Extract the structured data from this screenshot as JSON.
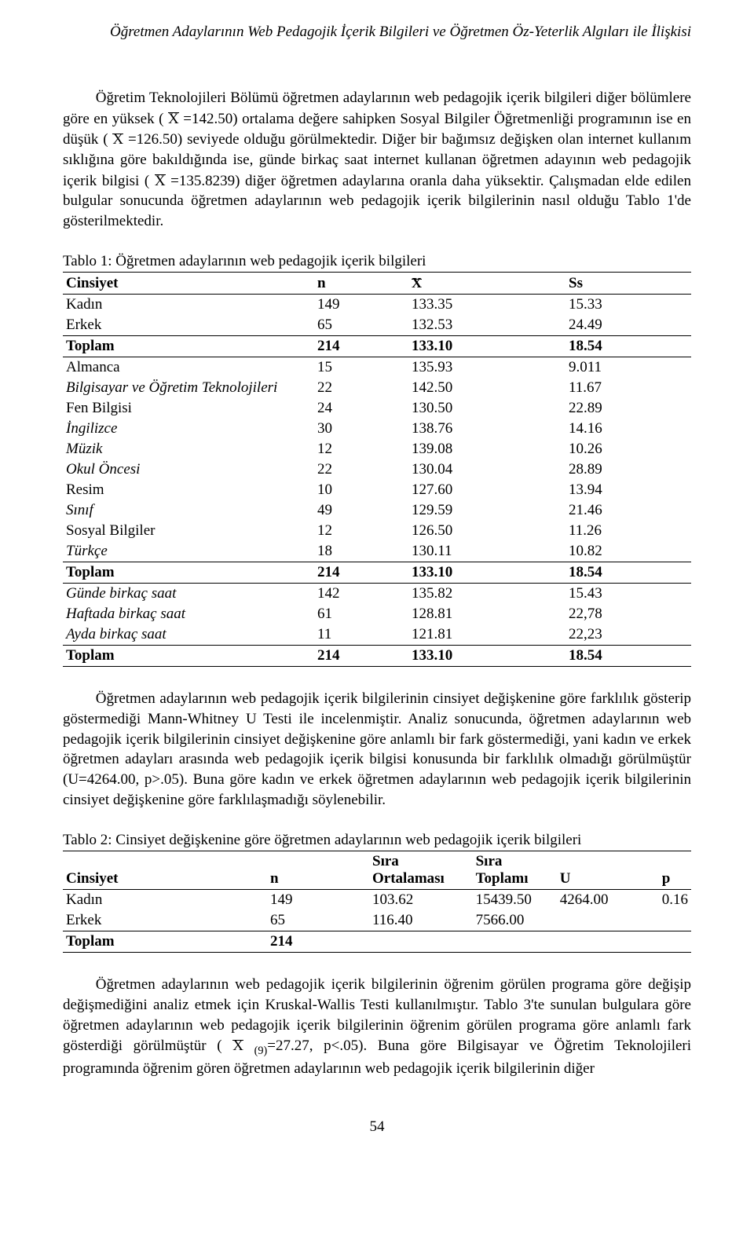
{
  "header": {
    "title": "Öğretmen Adaylarının Web Pedagojik İçerik Bilgileri ve Öğretmen Öz-Yeterlik Algıları ile İlişkisi"
  },
  "para1": {
    "t1": "Öğretim Teknolojileri Bölümü öğretmen adaylarının web pedagojik içerik bilgileri diğer bölümlere göre en yüksek ( ",
    "t2": " =142.50) ortalama değere sahipken Sosyal Bilgiler Öğretmenliği programının ise en düşük ( ",
    "t3": " =126.50) seviyede olduğu görülmektedir. Diğer bir bağımsız değişken olan internet kullanım sıklığına göre bakıldığında ise, günde birkaç saat internet kullanan öğretmen adayının web pedagojik içerik bilgisi ( ",
    "t4": " =135.8239) diğer öğretmen adaylarına oranla daha yüksektir. Çalışmadan elde edilen bulgular sonucunda öğretmen adaylarının web pedagojik içerik bilgilerinin nasıl olduğu Tablo 1'de gösterilmektedir."
  },
  "table1": {
    "caption": "Tablo 1: Öğretmen adaylarının web pedagojik içerik bilgileri",
    "head": {
      "c1": "Cinsiyet",
      "c2": "n",
      "c3": "X",
      "c4": "Ss"
    },
    "sec1": [
      {
        "label": "Kadın",
        "n": "149",
        "x": "133.35",
        "ss": "15.33",
        "italic": false
      },
      {
        "label": "Erkek",
        "n": "65",
        "x": "132.53",
        "ss": "24.49",
        "italic": false
      }
    ],
    "sec1_total": {
      "label": "Toplam",
      "n": "214",
      "x": "133.10",
      "ss": "18.54"
    },
    "sec2": [
      {
        "label": "Almanca",
        "n": "15",
        "x": "135.93",
        "ss": "9.011",
        "italic": false
      },
      {
        "label": "Bilgisayar ve Öğretim Teknolojileri",
        "n": "22",
        "x": "142.50",
        "ss": "11.67",
        "italic": true
      },
      {
        "label": "Fen Bilgisi",
        "n": "24",
        "x": "130.50",
        "ss": "22.89",
        "italic": false
      },
      {
        "label": "İngilizce",
        "n": "30",
        "x": "138.76",
        "ss": "14.16",
        "italic": true
      },
      {
        "label": "Müzik",
        "n": "12",
        "x": "139.08",
        "ss": "10.26",
        "italic": true
      },
      {
        "label": "Okul Öncesi",
        "n": "22",
        "x": "130.04",
        "ss": "28.89",
        "italic": true
      },
      {
        "label": "Resim",
        "n": "10",
        "x": "127.60",
        "ss": "13.94",
        "italic": false
      },
      {
        "label": "Sınıf",
        "n": "49",
        "x": "129.59",
        "ss": "21.46",
        "italic": true
      },
      {
        "label": "Sosyal Bilgiler",
        "n": "12",
        "x": "126.50",
        "ss": "11.26",
        "italic": false
      },
      {
        "label": "Türkçe",
        "n": "18",
        "x": "130.11",
        "ss": "10.82",
        "italic": true
      }
    ],
    "sec2_total": {
      "label": "Toplam",
      "n": "214",
      "x": "133.10",
      "ss": "18.54"
    },
    "sec3": [
      {
        "label": "Günde birkaç saat",
        "n": "142",
        "x": "135.82",
        "ss": "15.43",
        "italic": true
      },
      {
        "label": "Haftada birkaç saat",
        "n": "61",
        "x": "128.81",
        "ss": "22,78",
        "italic": true
      },
      {
        "label": "Ayda birkaç saat",
        "n": "11",
        "x": "121.81",
        "ss": "22,23",
        "italic": true
      }
    ],
    "sec3_total": {
      "label": "Toplam",
      "n": "214",
      "x": "133.10",
      "ss": "18.54"
    }
  },
  "para2": {
    "text": "Öğretmen adaylarının web pedagojik içerik bilgilerinin cinsiyet değişkenine göre farklılık gösterip göstermediği Mann-Whitney U Testi ile incelenmiştir. Analiz sonucunda, öğretmen adaylarının web pedagojik içerik bilgilerinin cinsiyet değişkenine göre anlamlı bir fark göstermediği, yani kadın ve erkek öğretmen adayları arasında web pedagojik içerik bilgisi konusunda bir farklılık olmadığı görülmüştür (U=4264.00, p>.05). Buna göre kadın ve erkek öğretmen adaylarının web pedagojik içerik bilgilerinin cinsiyet değişkenine göre farklılaşmadığı söylenebilir."
  },
  "table2": {
    "caption": "Tablo 2: Cinsiyet değişkenine göre öğretmen adaylarının web pedagojik içerik bilgileri",
    "head": {
      "c1": "Cinsiyet",
      "c2": "n",
      "c3": "Sıra Ortalaması",
      "c4": "Sıra Toplamı",
      "c5": "U",
      "c6": "p"
    },
    "rows": [
      {
        "label": "Kadın",
        "n": "149",
        "so": "103.62",
        "st": "15439.50",
        "u": "4264.00",
        "p": "0.16"
      },
      {
        "label": "Erkek",
        "n": "65",
        "so": "116.40",
        "st": "7566.00",
        "u": "",
        "p": ""
      }
    ],
    "total": {
      "label": "Toplam",
      "n": "214",
      "so": "",
      "st": "",
      "u": "",
      "p": ""
    }
  },
  "para3": {
    "t1": "Öğretmen adaylarının web pedagojik içerik bilgilerinin öğrenim görülen programa göre değişip değişmediğini analiz etmek için Kruskal-Wallis Testi kullanılmıştır. Tablo 3'te sunulan bulgulara göre öğretmen adaylarının web pedagojik içerik bilgilerinin öğrenim görülen programa göre anlamlı fark gösterdiği görülmüştür ( ",
    "sub": "(9)",
    "t2": "=27.27, p<.05). Buna göre Bilgisayar ve Öğretim Teknolojileri programında öğrenim gören öğretmen adaylarının web pedagojik içerik bilgilerinin diğer"
  },
  "page_number": "54"
}
